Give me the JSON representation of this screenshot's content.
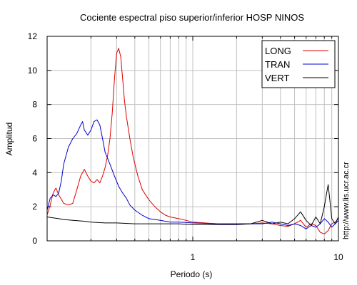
{
  "chart_data": {
    "type": "line",
    "title": "Cociente espectral piso superior/inferior  HOSP NINOS",
    "xlabel": "Periodo (s)",
    "ylabel": "Amplitud",
    "xscale": "log",
    "xlim": [
      0.1,
      10
    ],
    "ylim": [
      0,
      12
    ],
    "x_tick_labels": [
      {
        "value": 1,
        "label": "1"
      },
      {
        "value": 10,
        "label": "10"
      }
    ],
    "y_ticks": [
      0,
      2,
      4,
      6,
      8,
      10,
      12
    ],
    "grid": true,
    "legend_position": "top-right",
    "credit": "http://www.lis.ucr.ac.cr",
    "series": [
      {
        "name": "LONG",
        "color": "#e00000",
        "points": [
          [
            0.1,
            1.5
          ],
          [
            0.105,
            2.1
          ],
          [
            0.11,
            2.8
          ],
          [
            0.115,
            3.1
          ],
          [
            0.12,
            2.7
          ],
          [
            0.13,
            2.2
          ],
          [
            0.14,
            2.1
          ],
          [
            0.15,
            2.2
          ],
          [
            0.16,
            3.0
          ],
          [
            0.17,
            3.8
          ],
          [
            0.18,
            4.2
          ],
          [
            0.19,
            3.8
          ],
          [
            0.2,
            3.5
          ],
          [
            0.21,
            3.4
          ],
          [
            0.22,
            3.6
          ],
          [
            0.23,
            3.4
          ],
          [
            0.24,
            3.8
          ],
          [
            0.25,
            4.3
          ],
          [
            0.26,
            5.0
          ],
          [
            0.27,
            6.0
          ],
          [
            0.28,
            7.5
          ],
          [
            0.29,
            9.5
          ],
          [
            0.3,
            11.0
          ],
          [
            0.31,
            11.3
          ],
          [
            0.32,
            10.8
          ],
          [
            0.33,
            9.5
          ],
          [
            0.34,
            8.2
          ],
          [
            0.35,
            7.3
          ],
          [
            0.37,
            6.0
          ],
          [
            0.39,
            4.9
          ],
          [
            0.42,
            3.8
          ],
          [
            0.45,
            3.0
          ],
          [
            0.5,
            2.4
          ],
          [
            0.55,
            2.0
          ],
          [
            0.6,
            1.7
          ],
          [
            0.65,
            1.5
          ],
          [
            0.7,
            1.4
          ],
          [
            0.8,
            1.3
          ],
          [
            0.9,
            1.2
          ],
          [
            1.0,
            1.1
          ],
          [
            1.2,
            1.05
          ],
          [
            1.5,
            1.0
          ],
          [
            2.0,
            1.0
          ],
          [
            2.5,
            1.0
          ],
          [
            3.0,
            1.05
          ],
          [
            3.5,
            1.0
          ],
          [
            4.0,
            0.9
          ],
          [
            4.5,
            0.85
          ],
          [
            5.0,
            1.0
          ],
          [
            5.5,
            1.2
          ],
          [
            6.0,
            0.8
          ],
          [
            6.5,
            1.0
          ],
          [
            7.0,
            0.9
          ],
          [
            7.5,
            0.5
          ],
          [
            8.0,
            0.4
          ],
          [
            8.5,
            0.6
          ],
          [
            9.0,
            1.0
          ],
          [
            9.5,
            1.1
          ],
          [
            10.0,
            1.3
          ]
        ]
      },
      {
        "name": "TRAN",
        "color": "#0000d0",
        "points": [
          [
            0.1,
            1.8
          ],
          [
            0.105,
            2.5
          ],
          [
            0.11,
            2.7
          ],
          [
            0.115,
            2.6
          ],
          [
            0.12,
            2.8
          ],
          [
            0.125,
            3.5
          ],
          [
            0.13,
            4.5
          ],
          [
            0.14,
            5.5
          ],
          [
            0.15,
            6.0
          ],
          [
            0.16,
            6.3
          ],
          [
            0.17,
            6.8
          ],
          [
            0.175,
            7.0
          ],
          [
            0.18,
            6.5
          ],
          [
            0.19,
            6.2
          ],
          [
            0.2,
            6.5
          ],
          [
            0.21,
            7.0
          ],
          [
            0.22,
            7.1
          ],
          [
            0.23,
            6.8
          ],
          [
            0.24,
            6.0
          ],
          [
            0.25,
            5.2
          ],
          [
            0.27,
            4.5
          ],
          [
            0.29,
            3.8
          ],
          [
            0.31,
            3.2
          ],
          [
            0.33,
            2.8
          ],
          [
            0.35,
            2.5
          ],
          [
            0.37,
            2.1
          ],
          [
            0.4,
            1.8
          ],
          [
            0.45,
            1.5
          ],
          [
            0.5,
            1.3
          ],
          [
            0.6,
            1.2
          ],
          [
            0.7,
            1.1
          ],
          [
            0.8,
            1.1
          ],
          [
            1.0,
            1.05
          ],
          [
            1.5,
            1.0
          ],
          [
            2.0,
            1.0
          ],
          [
            2.5,
            1.0
          ],
          [
            3.0,
            1.0
          ],
          [
            3.5,
            1.1
          ],
          [
            4.0,
            1.0
          ],
          [
            4.5,
            0.9
          ],
          [
            5.0,
            1.0
          ],
          [
            5.5,
            0.9
          ],
          [
            6.0,
            0.7
          ],
          [
            6.5,
            0.9
          ],
          [
            7.0,
            0.8
          ],
          [
            7.5,
            1.0
          ],
          [
            8.0,
            1.3
          ],
          [
            8.5,
            1.1
          ],
          [
            9.0,
            0.8
          ],
          [
            9.5,
            1.0
          ],
          [
            10.0,
            1.2
          ]
        ]
      },
      {
        "name": "VERT",
        "color": "#000000",
        "points": [
          [
            0.1,
            1.4
          ],
          [
            0.11,
            1.35
          ],
          [
            0.12,
            1.3
          ],
          [
            0.13,
            1.25
          ],
          [
            0.15,
            1.2
          ],
          [
            0.18,
            1.15
          ],
          [
            0.2,
            1.1
          ],
          [
            0.25,
            1.05
          ],
          [
            0.3,
            1.05
          ],
          [
            0.4,
            1.0
          ],
          [
            0.5,
            1.0
          ],
          [
            0.6,
            1.0
          ],
          [
            0.8,
            1.0
          ],
          [
            1.0,
            0.95
          ],
          [
            1.5,
            0.95
          ],
          [
            2.0,
            0.95
          ],
          [
            2.5,
            1.0
          ],
          [
            3.0,
            1.2
          ],
          [
            3.5,
            1.0
          ],
          [
            4.0,
            1.1
          ],
          [
            4.5,
            1.0
          ],
          [
            5.0,
            1.3
          ],
          [
            5.5,
            1.7
          ],
          [
            6.0,
            1.2
          ],
          [
            6.5,
            0.9
          ],
          [
            7.0,
            1.4
          ],
          [
            7.5,
            1.0
          ],
          [
            8.0,
            2.0
          ],
          [
            8.3,
            2.8
          ],
          [
            8.5,
            3.3
          ],
          [
            8.7,
            2.5
          ],
          [
            9.0,
            1.3
          ],
          [
            9.5,
            1.0
          ],
          [
            10.0,
            1.4
          ]
        ]
      }
    ]
  }
}
